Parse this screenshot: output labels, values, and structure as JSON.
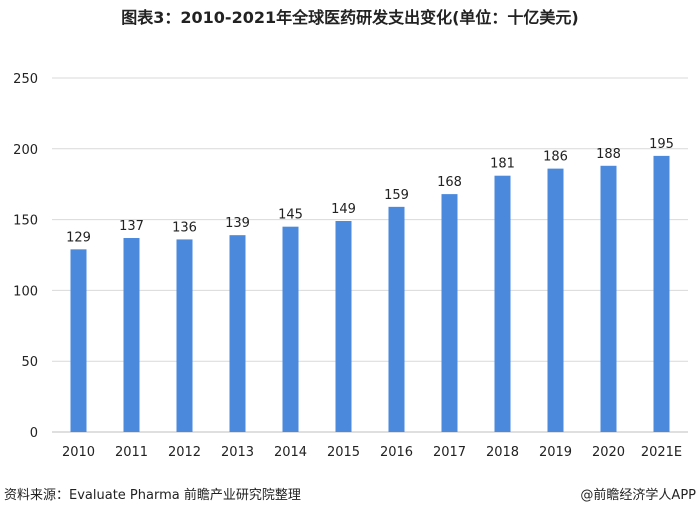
{
  "chart_data": {
    "type": "bar",
    "title": "图表3：2010-2021年全球医药研发支出变化(单位：十亿美元)",
    "xlabel": "",
    "ylabel": "",
    "categories": [
      "2010",
      "2011",
      "2012",
      "2013",
      "2014",
      "2015",
      "2016",
      "2017",
      "2018",
      "2019",
      "2020",
      "2021E"
    ],
    "values": [
      129,
      137,
      136,
      139,
      145,
      149,
      159,
      168,
      181,
      186,
      188,
      195
    ],
    "ylim": [
      0,
      250
    ],
    "yticks": [
      0,
      50,
      100,
      150,
      200,
      250
    ],
    "grid": true,
    "legend": "none",
    "bar_color": "#4a89dc",
    "data_labels": true
  },
  "footer": {
    "source": "资料来源：Evaluate Pharma 前瞻产业研究院整理",
    "brand": "@前瞻经济学人APP"
  }
}
